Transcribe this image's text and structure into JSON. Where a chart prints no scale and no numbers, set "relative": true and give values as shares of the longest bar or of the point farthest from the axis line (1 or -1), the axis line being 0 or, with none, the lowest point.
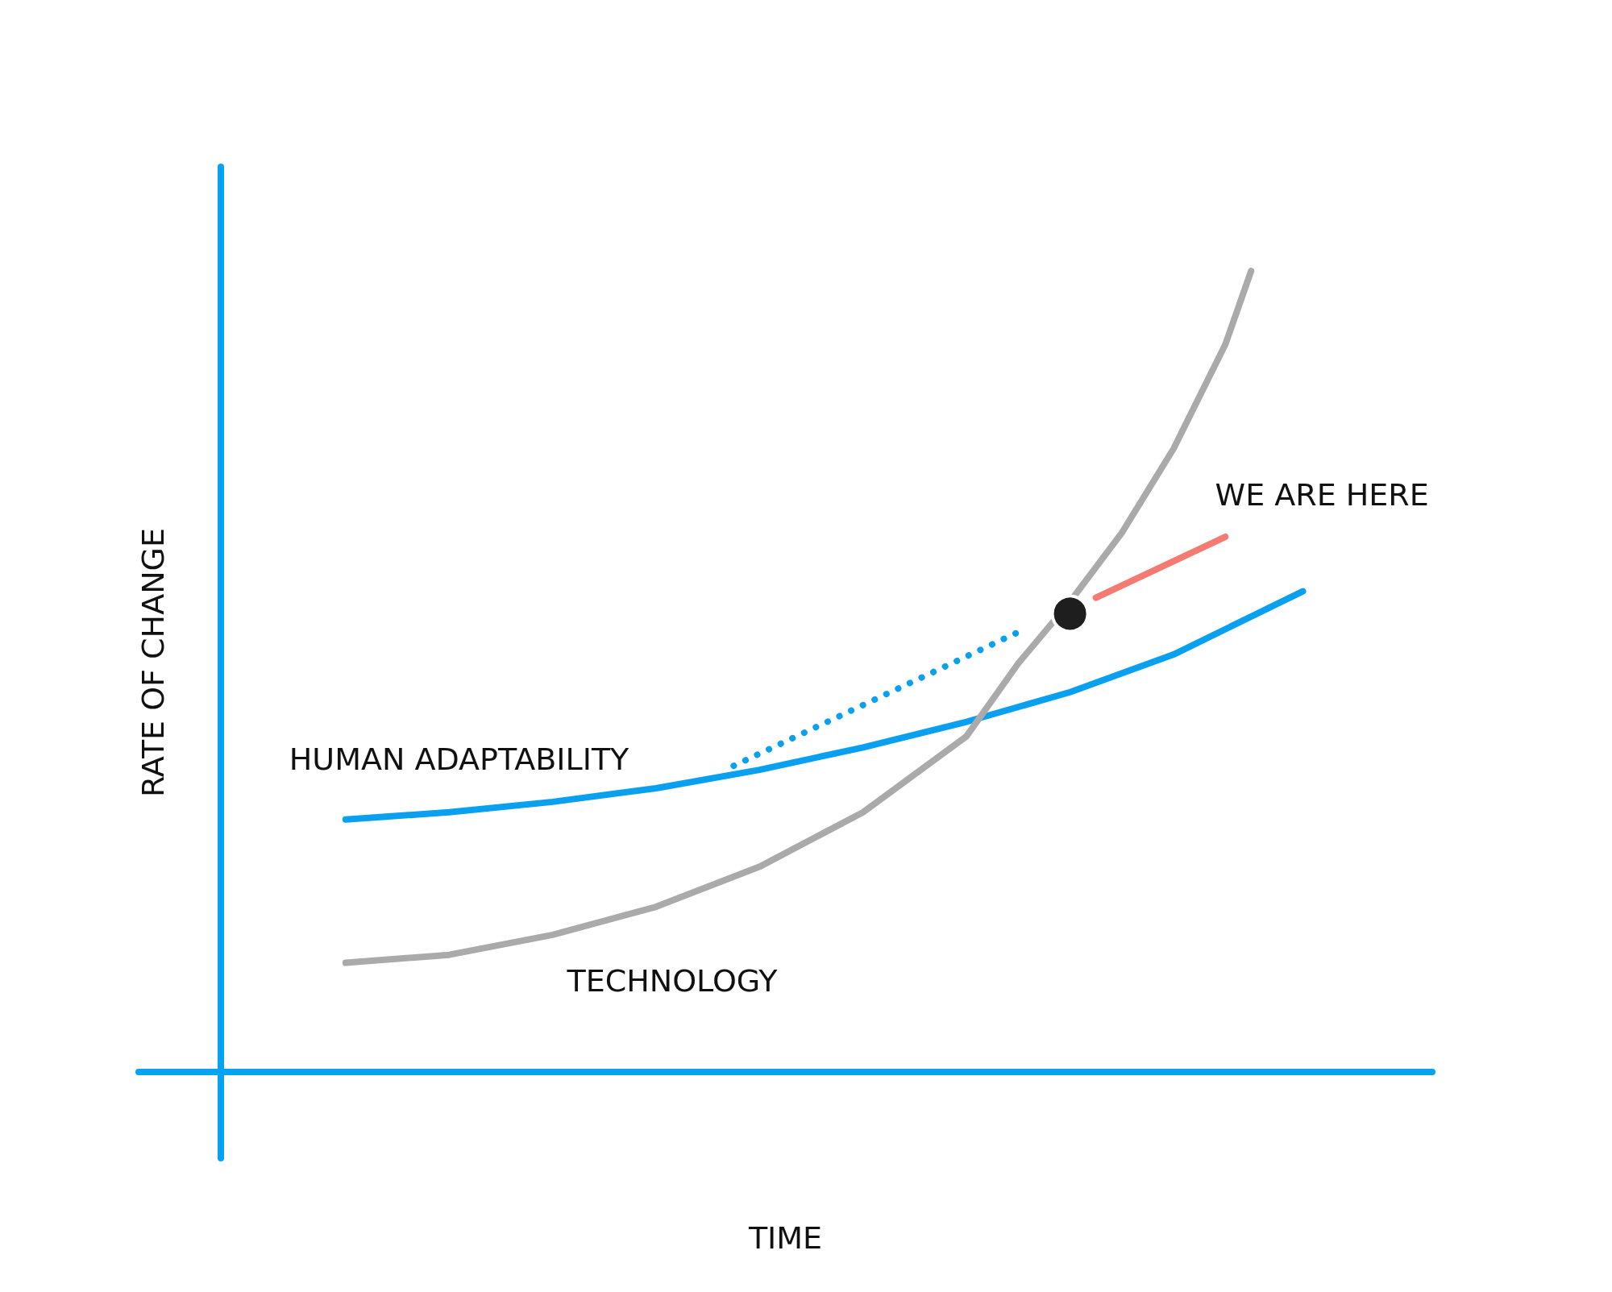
{
  "chart_data": {
    "type": "line",
    "relative": true,
    "xlabel": "TIME",
    "ylabel": "RATE OF CHANGE",
    "legend": false,
    "grid": false,
    "annotations": [
      "WE ARE HERE"
    ],
    "ref_lines": [
      {
        "axis": "y",
        "value": 0,
        "color": "#07a3f3"
      }
    ],
    "categories": [
      null,
      null,
      null,
      null,
      null,
      null,
      null,
      null,
      null,
      null,
      null,
      null,
      null,
      null,
      null,
      null,
      null,
      null,
      null,
      null,
      null,
      null,
      null,
      null,
      null,
      null,
      null,
      null,
      null,
      null,
      null,
      null,
      null,
      null,
      null,
      null,
      null,
      null,
      null,
      null,
      null,
      null,
      null,
      null,
      null,
      null,
      null,
      null,
      null,
      null,
      null
    ],
    "series": [
      {
        "name": "HUMAN ADAPTABILITY",
        "color": "#0aa0f0",
        "values": [
          null,
          null,
          null,
          null,
          null,
          null,
          null,
          null,
          0.315,
          null,
          null,
          null,
          0.324,
          null,
          null,
          null,
          0.337,
          null,
          null,
          null,
          0.354,
          null,
          null,
          null,
          0.377,
          null,
          null,
          null,
          0.405,
          null,
          null,
          null,
          0.437,
          null,
          null,
          null,
          0.474,
          null,
          null,
          null,
          0.521,
          null,
          null,
          null,
          null,
          0.6,
          null,
          null,
          null,
          null,
          null
        ]
      },
      {
        "name": "TECHNOLOGY",
        "color": "#aaaaaa",
        "values": [
          null,
          null,
          null,
          null,
          null,
          null,
          null,
          null,
          0.136,
          null,
          null,
          null,
          0.146,
          null,
          null,
          null,
          0.171,
          null,
          null,
          null,
          0.206,
          null,
          null,
          null,
          0.256,
          null,
          null,
          null,
          0.324,
          null,
          null,
          null,
          0.419,
          null,
          0.51,
          null,
          0.587,
          null,
          0.673,
          null,
          0.778,
          null,
          0.908,
          1,
          null,
          null,
          null,
          null,
          null,
          null,
          null
        ]
      },
      {
        "color": "#0aa0f0",
        "line_style": "dotted",
        "values": [
          null,
          null,
          null,
          null,
          null,
          null,
          null,
          null,
          null,
          null,
          null,
          null,
          null,
          null,
          null,
          null,
          null,
          null,
          null,
          null,
          null,
          null,
          null,
          0.382,
          null,
          null,
          null,
          null,
          null,
          null,
          null,
          null,
          null,
          null,
          0.549,
          null,
          null,
          null,
          null,
          null,
          null,
          null,
          null,
          null,
          null,
          null,
          null,
          null,
          null,
          null,
          null
        ]
      },
      {
        "color": "#f47a72",
        "values": [
          null,
          null,
          null,
          null,
          null,
          null,
          null,
          null,
          null,
          null,
          null,
          null,
          null,
          null,
          null,
          null,
          null,
          null,
          null,
          null,
          null,
          null,
          null,
          null,
          null,
          null,
          null,
          null,
          null,
          null,
          null,
          null,
          null,
          null,
          null,
          null,
          null,
          0.592,
          null,
          null,
          null,
          null,
          0.668,
          null,
          null,
          null,
          null,
          null,
          null,
          null,
          null
        ]
      },
      {
        "color": "#1e1e1e",
        "marker": "circle",
        "values": [
          null,
          null,
          null,
          null,
          null,
          null,
          null,
          null,
          null,
          null,
          null,
          null,
          null,
          null,
          null,
          null,
          null,
          null,
          null,
          null,
          null,
          null,
          null,
          null,
          null,
          null,
          null,
          null,
          null,
          null,
          null,
          null,
          null,
          null,
          null,
          null,
          0.572,
          null,
          null,
          null,
          null,
          null,
          null,
          null,
          null,
          null,
          null,
          null,
          null,
          null,
          null
        ]
      }
    ]
  }
}
